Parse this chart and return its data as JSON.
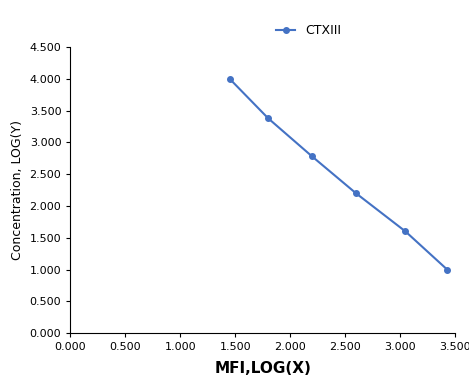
{
  "x": [
    1.45,
    1.8,
    2.2,
    2.6,
    3.05,
    3.43
  ],
  "y": [
    4.0,
    3.38,
    2.78,
    2.2,
    1.6,
    1.0
  ],
  "line_color": "#4472C4",
  "marker": "o",
  "marker_size": 4,
  "line_width": 1.5,
  "legend_label": "CTXIII",
  "xlabel": "MFI,LOG(X)",
  "ylabel": "Concentration, LOG(Y)",
  "xlim": [
    0.0,
    3.5
  ],
  "ylim": [
    0.0,
    4.5
  ],
  "xticks": [
    0.0,
    0.5,
    1.0,
    1.5,
    2.0,
    2.5,
    3.0,
    3.5
  ],
  "yticks": [
    0.0,
    0.5,
    1.0,
    1.5,
    2.0,
    2.5,
    3.0,
    3.5,
    4.0,
    4.5
  ],
  "xlabel_fontsize": 11,
  "ylabel_fontsize": 9,
  "tick_fontsize": 8,
  "legend_fontsize": 9,
  "background_color": "#ffffff"
}
